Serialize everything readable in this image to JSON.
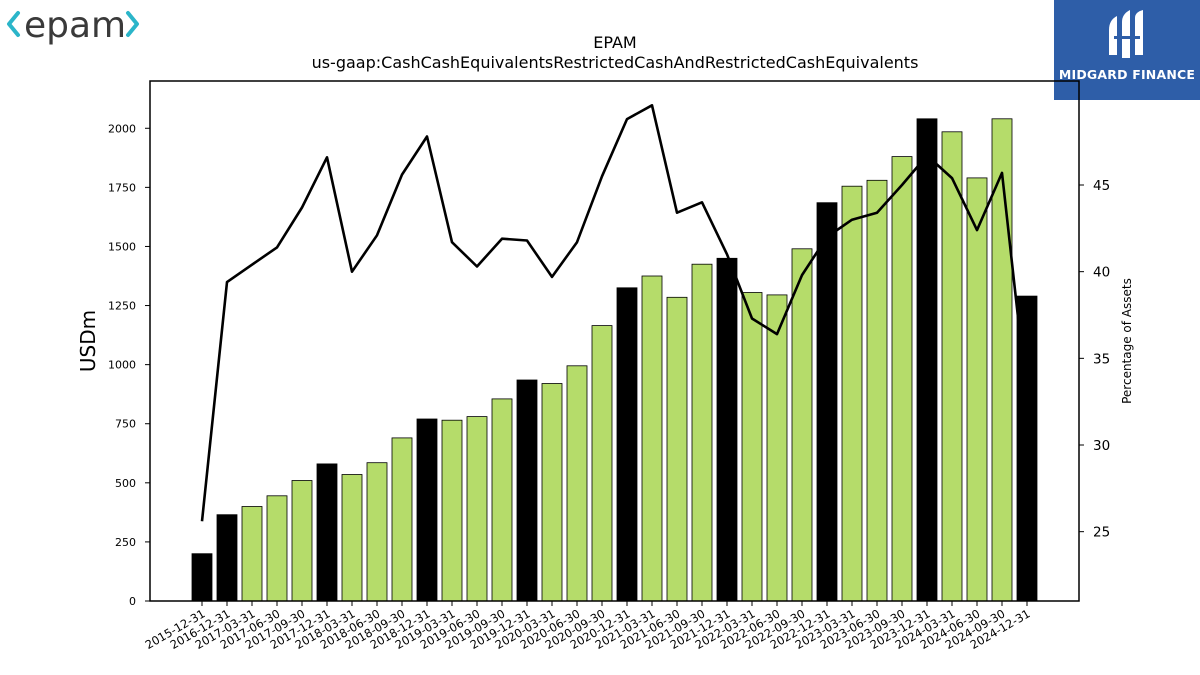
{
  "brand": {
    "left_logo_text": "epam",
    "left_logo_color": "#3a3a3a",
    "left_logo_chevron_color": "#2bb5c9",
    "right_logo_text": "MIDGARD FINANCE",
    "right_logo_bg": "#2e5ea8"
  },
  "chart_data": {
    "type": "bar",
    "title": "EPAM",
    "subtitle": "us-gaap:CashCashEquivalentsRestrictedCashAndRestrictedCashEquivalents",
    "ylabel": "USDm",
    "ylabel_right": "Percentage of Assets",
    "ylim": [
      0,
      2200
    ],
    "ylim_right": [
      21,
      51
    ],
    "yticks": [
      0,
      250,
      500,
      750,
      1000,
      1250,
      1500,
      1750,
      2000
    ],
    "yticks_right": [
      25,
      30,
      35,
      40,
      45
    ],
    "grid": false,
    "colors": {
      "annual": "#000000",
      "quarterly": "#b5dc6a",
      "line": "#000000"
    },
    "categories": [
      "2015-12-31",
      "2016-12-31",
      "2017-03-31",
      "2017-06-30",
      "2017-09-30",
      "2017-12-31",
      "2018-03-31",
      "2018-06-30",
      "2018-09-30",
      "2018-12-31",
      "2019-03-31",
      "2019-06-30",
      "2019-09-30",
      "2019-12-31",
      "2020-03-31",
      "2020-06-30",
      "2020-09-30",
      "2020-12-31",
      "2021-03-31",
      "2021-06-30",
      "2021-09-30",
      "2021-12-31",
      "2022-03-31",
      "2022-06-30",
      "2022-09-30",
      "2022-12-31",
      "2023-03-31",
      "2023-06-30",
      "2023-09-30",
      "2023-12-31",
      "2024-03-31",
      "2024-06-30",
      "2024-09-30",
      "2024-12-31"
    ],
    "series": [
      {
        "kind": "bar",
        "values": [
          200,
          365,
          400,
          445,
          510,
          580,
          535,
          585,
          690,
          770,
          765,
          780,
          855,
          935,
          920,
          995,
          1165,
          1325,
          1375,
          1285,
          1425,
          1450,
          1305,
          1295,
          1490,
          1685,
          1755,
          1780,
          1880,
          2040,
          1985,
          1790,
          2040,
          1290
        ],
        "annual": [
          true,
          true,
          false,
          false,
          false,
          true,
          false,
          false,
          false,
          true,
          false,
          false,
          false,
          true,
          false,
          false,
          false,
          true,
          false,
          false,
          false,
          true,
          false,
          false,
          false,
          true,
          false,
          false,
          false,
          true,
          false,
          false,
          false,
          true
        ]
      },
      {
        "kind": "line",
        "axis": "right",
        "values": [
          25.6,
          39.4,
          40.4,
          41.4,
          43.7,
          46.6,
          40.0,
          42.1,
          45.6,
          47.8,
          41.7,
          40.3,
          41.9,
          41.8,
          39.7,
          41.7,
          45.5,
          48.8,
          49.6,
          43.4,
          44.0,
          41.0,
          37.3,
          36.4,
          39.8,
          42.0,
          43.0,
          43.4,
          45.0,
          46.7,
          45.4,
          42.4,
          45.7,
          32.7
        ]
      }
    ]
  }
}
